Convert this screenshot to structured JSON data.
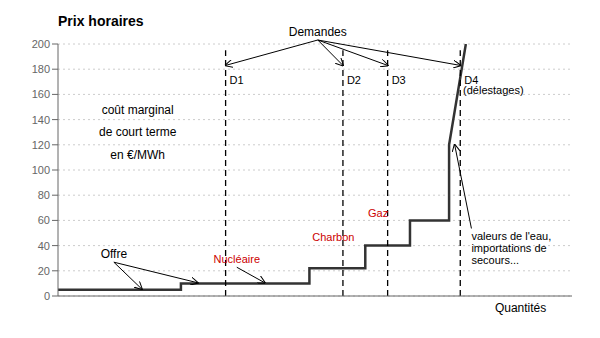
{
  "chart_data": {
    "type": "line",
    "title": "Prix horaires",
    "ylabel": "coût marginal\nde court terme\nen €/MWh",
    "xlabel": "Quantités",
    "xlim": [
      0,
      9.2
    ],
    "xticks": [],
    "ylim": [
      0,
      200
    ],
    "yticks": [
      0,
      20,
      40,
      60,
      80,
      100,
      120,
      140,
      160,
      180,
      200
    ],
    "grid": true,
    "tick_labels": "y",
    "series": [
      {
        "name": "Offre",
        "color": "#333333",
        "line_style": "solid",
        "x": [
          0,
          2.2,
          2.2,
          4.5,
          4.5,
          5.5,
          5.5,
          6.3,
          6.3,
          7.0,
          7.0,
          7.3
        ],
        "values": [
          5,
          5,
          10,
          10,
          22,
          22,
          40,
          40,
          60,
          60,
          120,
          200
        ]
      }
    ],
    "demand_label": "Demandes",
    "demand_color": "#000000",
    "demand_line_style": "dashed",
    "demand_lines": [
      {
        "label": "D1",
        "x": 3.0,
        "y": [
          0,
          195
        ]
      },
      {
        "label": "D2",
        "x": 5.1,
        "y": [
          0,
          195
        ]
      },
      {
        "label": "D3",
        "x": 5.9,
        "y": [
          0,
          195
        ]
      },
      {
        "label": "D4",
        "x": 7.2,
        "y": [
          0,
          195
        ]
      }
    ],
    "annotations": [
      {
        "text": "Nucléaire",
        "color": "#cc0000"
      },
      {
        "text": "Charbon",
        "color": "#cc0000"
      },
      {
        "text": "Gaz",
        "color": "#cc0000"
      },
      {
        "text": "valeurs de l'eau,\nimportations de\nsecours..."
      },
      {
        "text": "(délestages)"
      }
    ]
  }
}
